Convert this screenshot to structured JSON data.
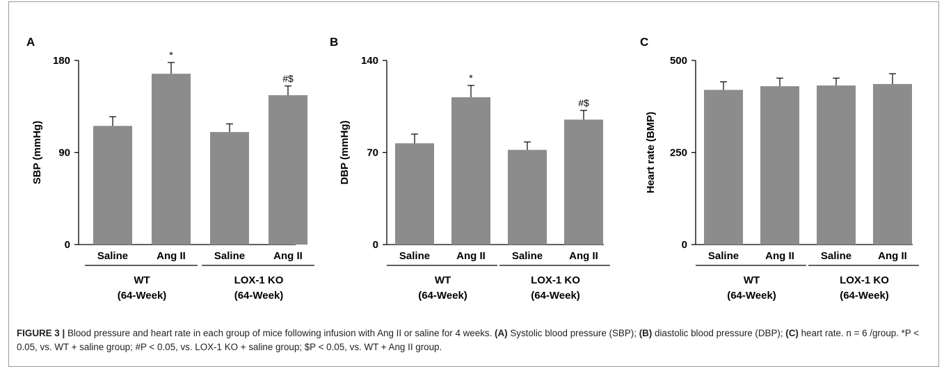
{
  "figure": {
    "caption_parts": [
      {
        "text": "FIGURE 3 | ",
        "bold": true
      },
      {
        "text": "Blood pressure and heart rate in each group of mice following infusion with Ang II or saline for 4 weeks. ",
        "bold": false
      },
      {
        "text": "(A)",
        "bold": true
      },
      {
        "text": " Systolic blood pressure (SBP); ",
        "bold": false
      },
      {
        "text": "(B)",
        "bold": true
      },
      {
        "text": " diastolic blood pressure (DBP); ",
        "bold": false
      },
      {
        "text": "(C)",
        "bold": true
      },
      {
        "text": " heart rate. n = 6 /group. *P < 0.05, vs. WT + saline group; #P < 0.05, vs. LOX-1 KO + saline group; $P < 0.05, vs. WT + Ang II group.",
        "bold": false
      }
    ]
  },
  "chart_data": [
    {
      "panel": "A",
      "type": "bar",
      "ylabel": "SBP (mmHg)",
      "ylim": [
        0,
        180
      ],
      "yticks": [
        0,
        90,
        180
      ],
      "categories": [
        "Saline",
        "Ang II",
        "Saline",
        "Ang II"
      ],
      "groups": [
        {
          "line1": "WT",
          "line2": "(64-Week)"
        },
        {
          "line1": "LOX-1 KO",
          "line2": "(64-Week)"
        }
      ],
      "values": [
        116,
        167,
        110,
        146
      ],
      "errors": [
        9,
        11,
        8,
        9
      ],
      "annotations": [
        "",
        "*",
        "",
        "#$"
      ],
      "bar_color": "#8c8c8c"
    },
    {
      "panel": "B",
      "type": "bar",
      "ylabel": "DBP (mmHg)",
      "ylim": [
        0,
        140
      ],
      "yticks": [
        0,
        70,
        140
      ],
      "categories": [
        "Saline",
        "Ang II",
        "Saline",
        "Ang II"
      ],
      "groups": [
        {
          "line1": "WT",
          "line2": "(64-Week)"
        },
        {
          "line1": "LOX-1 KO",
          "line2": "(64-Week)"
        }
      ],
      "values": [
        77,
        112,
        72,
        95
      ],
      "errors": [
        7,
        9,
        6,
        7
      ],
      "annotations": [
        "",
        "*",
        "",
        "#$"
      ],
      "bar_color": "#8c8c8c"
    },
    {
      "panel": "C",
      "type": "bar",
      "ylabel": "Heart rate (BMP)",
      "ylim": [
        0,
        500
      ],
      "yticks": [
        0,
        250,
        500
      ],
      "categories": [
        "Saline",
        "Ang II",
        "Saline",
        "Ang II"
      ],
      "groups": [
        {
          "line1": "WT",
          "line2": "(64-Week)"
        },
        {
          "line1": "LOX-1 KO",
          "line2": "(64-Week)"
        }
      ],
      "values": [
        420,
        430,
        432,
        436
      ],
      "errors": [
        22,
        22,
        20,
        28
      ],
      "annotations": [
        "",
        "",
        "",
        ""
      ],
      "bar_color": "#8c8c8c"
    }
  ]
}
